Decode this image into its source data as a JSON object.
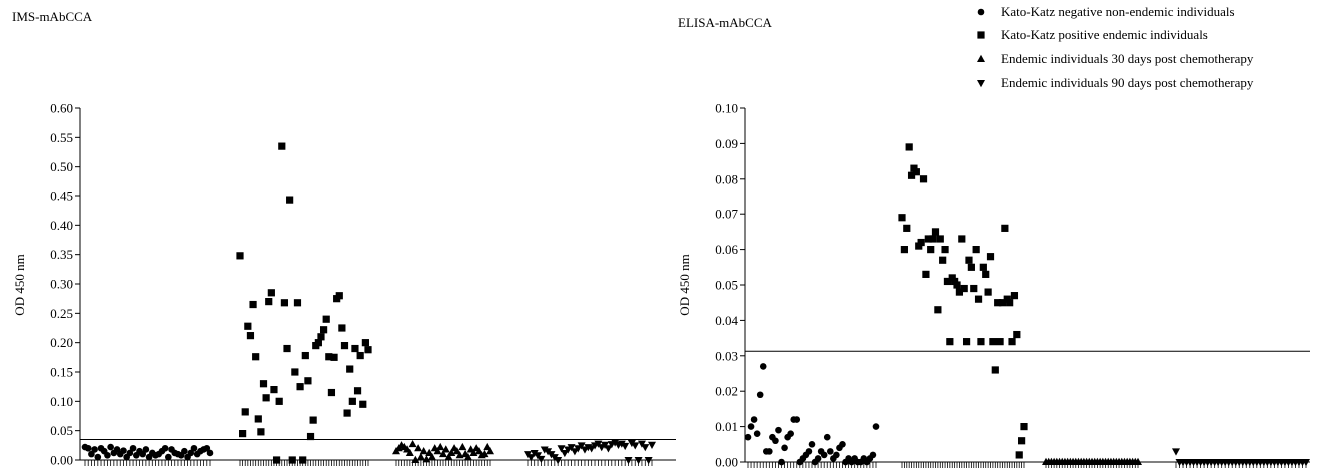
{
  "legend": {
    "placement": "top-right",
    "entries": [
      {
        "marker": "circle",
        "label": "Kato-Katz negative non-endemic individuals"
      },
      {
        "marker": "square",
        "label": "Kato-Katz positive endemic individuals"
      },
      {
        "marker": "triangle-up",
        "label": "Endemic individuals 30 days post chemotherapy"
      },
      {
        "marker": "triangle-down",
        "label": "Endemic individuals 90 days post chemotherapy"
      }
    ]
  },
  "chart_data": [
    {
      "type": "scatter",
      "title": "IMS-mAbCCA",
      "ylabel": "OD 450 nm",
      "xlabel": "",
      "ylim": [
        0,
        0.6
      ],
      "yticks": [
        "0.00",
        "0.05",
        "0.10",
        "0.15",
        "0.20",
        "0.25",
        "0.30",
        "0.35",
        "0.40",
        "0.45",
        "0.50",
        "0.55",
        "0.60"
      ],
      "cutoff": 0.035,
      "grid": false,
      "series": [
        {
          "name": "Kato-Katz negative non-endemic individuals",
          "marker": "circle",
          "values": [
            0.022,
            0.02,
            0.01,
            0.018,
            0.005,
            0.02,
            0.015,
            0.008,
            0.022,
            0.012,
            0.018,
            0.01,
            0.016,
            0.005,
            0.012,
            0.02,
            0.008,
            0.015,
            0.01,
            0.018,
            0.005,
            0.012,
            0.008,
            0.01,
            0.015,
            0.02,
            0.005,
            0.018,
            0.012,
            0.01,
            0.008,
            0.015,
            0.005,
            0.012,
            0.02,
            0.01,
            0.015,
            0.018,
            0.02,
            0.012
          ]
        },
        {
          "name": "Kato-Katz positive endemic individuals",
          "marker": "square",
          "values": [
            0.348,
            0.045,
            0.082,
            0.228,
            0.212,
            0.265,
            0.176,
            0.07,
            0.048,
            0.13,
            0.106,
            0.27,
            0.285,
            0.12,
            0.0,
            0.1,
            0.535,
            0.268,
            0.19,
            0.443,
            0.0,
            0.15,
            0.268,
            0.125,
            0.0,
            0.178,
            0.135,
            0.04,
            0.068,
            0.195,
            0.2,
            0.21,
            0.222,
            0.24,
            0.176,
            0.115,
            0.175,
            0.275,
            0.28,
            0.225,
            0.195,
            0.08,
            0.155,
            0.1,
            0.19,
            0.118,
            0.178,
            0.095,
            0.2,
            0.188
          ]
        },
        {
          "name": "Endemic individuals 30 days post chemotherapy",
          "marker": "triangle-up",
          "values": [
            0.015,
            0.02,
            0.025,
            0.022,
            0.018,
            0.012,
            0.027,
            0.0,
            0.02,
            0.005,
            0.015,
            0.001,
            0.012,
            0.005,
            0.02,
            0.015,
            0.022,
            0.01,
            0.018,
            0.005,
            0.012,
            0.02,
            0.015,
            0.008,
            0.022,
            0.01,
            0.005,
            0.018,
            0.012,
            0.02,
            0.015,
            0.008,
            0.01,
            0.022,
            0.015
          ]
        },
        {
          "name": "Endemic individuals 90 days post chemotherapy",
          "marker": "triangle-down",
          "values": [
            0.01,
            0.005,
            0.012,
            0.008,
            0.002,
            0.018,
            0.015,
            0.01,
            0.005,
            0.0,
            0.02,
            0.012,
            0.018,
            0.022,
            0.015,
            0.02,
            0.025,
            0.018,
            0.022,
            0.02,
            0.025,
            0.028,
            0.022,
            0.026,
            0.02,
            0.027,
            0.03,
            0.026,
            0.028,
            0.024,
            0.0,
            0.029,
            0.025,
            0.0,
            0.028,
            0.022,
            0.0,
            0.026
          ]
        }
      ]
    },
    {
      "type": "scatter",
      "title": "ELISA-mAbCCA",
      "ylabel": "OD 450 nm",
      "xlabel": "",
      "ylim": [
        0,
        0.1
      ],
      "yticks": [
        "0.00",
        "0.01",
        "0.02",
        "0.03",
        "0.04",
        "0.05",
        "0.06",
        "0.07",
        "0.08",
        "0.09",
        "0.10"
      ],
      "cutoff": 0.0313,
      "grid": false,
      "series": [
        {
          "name": "Kato-Katz negative non-endemic individuals",
          "marker": "circle",
          "values": [
            0.007,
            0.01,
            0.012,
            0.008,
            0.019,
            0.027,
            0.003,
            0.003,
            0.007,
            0.006,
            0.009,
            0.0,
            0.004,
            0.007,
            0.008,
            0.012,
            0.012,
            0.0,
            0.001,
            0.002,
            0.003,
            0.005,
            0.0,
            0.001,
            0.003,
            0.002,
            0.007,
            0.003,
            0.001,
            0.002,
            0.004,
            0.005,
            0.0,
            0.001,
            0.0,
            0.001,
            0.0,
            0.0,
            0.001,
            0.0,
            0.001,
            0.002,
            0.01
          ]
        },
        {
          "name": "Kato-Katz positive endemic individuals",
          "marker": "square",
          "values": [
            0.069,
            0.06,
            0.066,
            0.089,
            0.081,
            0.083,
            0.082,
            0.061,
            0.062,
            0.08,
            0.053,
            0.063,
            0.06,
            0.063,
            0.065,
            0.043,
            0.063,
            0.057,
            0.06,
            0.051,
            0.034,
            0.052,
            0.051,
            0.05,
            0.048,
            0.063,
            0.049,
            0.034,
            0.057,
            0.055,
            0.049,
            0.06,
            0.046,
            0.034,
            0.055,
            0.053,
            0.048,
            0.058,
            0.034,
            0.026,
            0.045,
            0.034,
            0.045,
            0.066,
            0.046,
            0.045,
            0.034,
            0.047,
            0.036,
            0.002,
            0.006,
            0.01
          ]
        },
        {
          "name": "Endemic individuals 30 days post chemotherapy",
          "marker": "triangle-up",
          "values": [
            0.0,
            0.0,
            0.0,
            0.0,
            0.0,
            0.0,
            0.0,
            0.0,
            0.0,
            0.0,
            0.0,
            0.0,
            0.0,
            0.0,
            0.0,
            0.0,
            0.0,
            0.0,
            0.0,
            0.0,
            0.0,
            0.0,
            0.0,
            0.0,
            0.0,
            0.0,
            0.0,
            0.0,
            0.0,
            0.0,
            0.0,
            0.0,
            0.0,
            0.0,
            0.0
          ]
        },
        {
          "name": "Endemic individuals 90 days post chemotherapy",
          "marker": "triangle-down",
          "values": [
            0.003,
            0.0,
            0.0,
            0.0,
            0.0,
            0.0,
            0.0,
            0.0,
            0.0,
            0.0,
            0.0,
            0.0,
            0.0,
            0.0,
            0.0,
            0.0,
            0.0,
            0.0,
            0.0,
            0.0,
            0.0,
            0.0,
            0.0,
            0.0,
            0.0,
            0.0,
            0.0,
            0.0,
            0.0,
            0.0,
            0.0,
            0.0,
            0.0,
            0.0,
            0.0,
            0.0,
            0.0,
            0.0
          ]
        }
      ]
    }
  ]
}
